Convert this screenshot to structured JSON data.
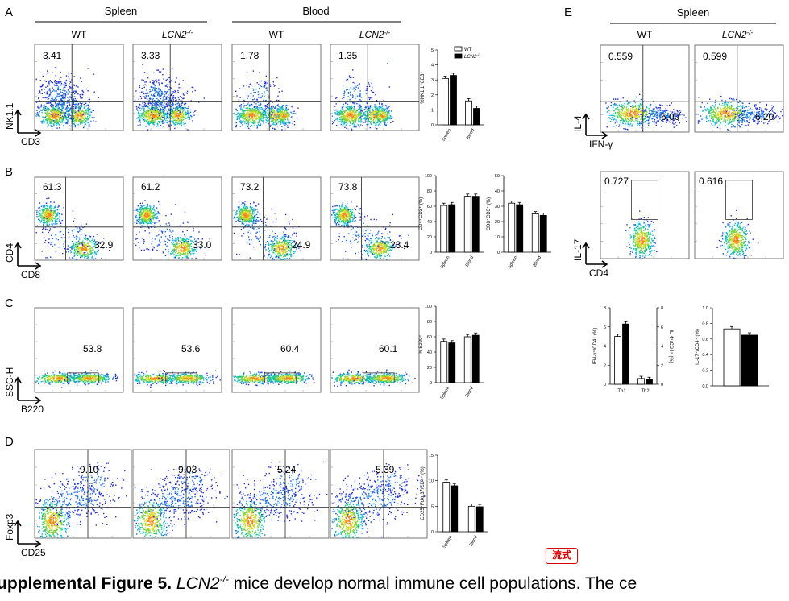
{
  "figure": {
    "panel_letters": {
      "A": "A",
      "B": "B",
      "C": "C",
      "D": "D",
      "E": "E"
    },
    "group_spleen": "Spleen",
    "group_blood": "Blood",
    "wt": "WT",
    "ko_gene": "LCN2",
    "ko_sup": "-/-",
    "bar_legend_wt": "WT",
    "bar_legend_ko_gene": "LCN2",
    "bar_legend_ko_sup": "-/-",
    "bar_cat_spleen": "Spleen",
    "bar_cat_blood": "Blood",
    "bar_cat_th1": "Th1",
    "bar_cat_th2": "Th2",
    "rows": {
      "A": {
        "ylabel": "NK1.1",
        "xlabel": "CD3",
        "values": [
          "3.41",
          "3.33",
          "1.78",
          "1.35"
        ],
        "bar_ylabel": "%NK1.1⁺CD3⁻"
      },
      "B": {
        "ylabel": "CD4",
        "xlabel": "CD8",
        "top_values": [
          "61.3",
          "61.2",
          "73.2",
          "73.8"
        ],
        "bottom_values": [
          "32.9",
          "33.0",
          "24.9",
          "23.4"
        ],
        "bar1_ylabel": "CD4⁺CD3⁺ (%)",
        "bar2_ylabel": "CD8⁺CD3⁺ (%)"
      },
      "C": {
        "ylabel": "SSC-H",
        "xlabel": "B220",
        "values": [
          "53.8",
          "53.6",
          "60.4",
          "60.1"
        ],
        "bar_ylabel": "% B220⁺"
      },
      "D": {
        "ylabel": "Foxp3",
        "xlabel": "CD25",
        "values": [
          "9.10",
          "9.03",
          "5.24",
          "5.39"
        ],
        "bar_ylabel": "CD25⁺Foxp3⁺/CD4⁺ (%)"
      },
      "E1": {
        "ylabel": "IL-4",
        "xlabel": "IFN-γ",
        "top_values": [
          "0.559",
          "0.599"
        ],
        "bottom_values": [
          "6.00",
          "6.20"
        ]
      },
      "E2": {
        "ylabel": "IL-17",
        "xlabel": "CD4",
        "values": [
          "0.727",
          "0.616"
        ]
      },
      "E3": {
        "left_ylabel": "IFN-γ⁺/CD4⁺ (%)",
        "right_ylabel": "IL-4⁺/CD4⁺ (%)"
      },
      "E4": {
        "ylabel": "IL-17⁺/CD4⁺ (%)"
      }
    }
  },
  "chart_data": [
    {
      "type": "bar",
      "ylabel": "%NK1.1⁺CD3⁻",
      "categories": [
        "Spleen",
        "Blood"
      ],
      "ylim": [
        0,
        5
      ],
      "series": [
        {
          "name": "WT",
          "values": [
            3.1,
            1.6
          ]
        },
        {
          "name": "LCN2-/-",
          "values": [
            3.3,
            1.1
          ]
        }
      ]
    },
    {
      "type": "bar",
      "ylabel": "CD4⁺CD3⁺ (%)",
      "categories": [
        "Spleen",
        "Blood"
      ],
      "ylim": [
        0,
        100
      ],
      "series": [
        {
          "name": "WT",
          "values": [
            61,
            73
          ]
        },
        {
          "name": "LCN2-/-",
          "values": [
            62,
            73
          ]
        }
      ]
    },
    {
      "type": "bar",
      "ylabel": "CD8⁺CD3⁺ (%)",
      "categories": [
        "Spleen",
        "Blood"
      ],
      "ylim": [
        0,
        50
      ],
      "series": [
        {
          "name": "WT",
          "values": [
            32,
            25
          ]
        },
        {
          "name": "LCN2-/-",
          "values": [
            31,
            24
          ]
        }
      ]
    },
    {
      "type": "bar",
      "ylabel": "% B220⁺",
      "categories": [
        "Spleen",
        "Blood"
      ],
      "ylim": [
        0,
        100
      ],
      "series": [
        {
          "name": "WT",
          "values": [
            54,
            60
          ]
        },
        {
          "name": "LCN2-/-",
          "values": [
            52,
            62
          ]
        }
      ]
    },
    {
      "type": "bar",
      "ylabel": "CD25⁺Foxp3⁺/CD4⁺ (%)",
      "categories": [
        "Spleen",
        "Blood"
      ],
      "ylim": [
        0,
        15
      ],
      "series": [
        {
          "name": "WT",
          "values": [
            9.7,
            5.0
          ]
        },
        {
          "name": "LCN2-/-",
          "values": [
            9.0,
            4.9
          ]
        }
      ]
    },
    {
      "type": "bar",
      "ylabel": "IFN-γ⁺/CD4⁺ (%)",
      "categories": [
        "Th1",
        "Th2"
      ],
      "ylim": [
        0,
        8
      ],
      "series": [
        {
          "name": "WT",
          "values": [
            5.0,
            0.6
          ]
        },
        {
          "name": "LCN2-/-",
          "values": [
            6.3,
            0.5
          ]
        }
      ]
    },
    {
      "type": "bar",
      "ylabel": "IL-17⁺/CD4⁺ (%)",
      "categories": [
        ""
      ],
      "ylim": [
        0,
        1.0
      ],
      "series": [
        {
          "name": "WT",
          "values": [
            0.73
          ]
        },
        {
          "name": "LCN2-/-",
          "values": [
            0.65
          ]
        }
      ]
    }
  ],
  "badge": {
    "label": "流式"
  },
  "caption": {
    "label": "upplemental Figure 5.",
    "gene": "LCN2",
    "sup": "-/-",
    "text": " mice develop normal immune cell populations. The ce"
  }
}
